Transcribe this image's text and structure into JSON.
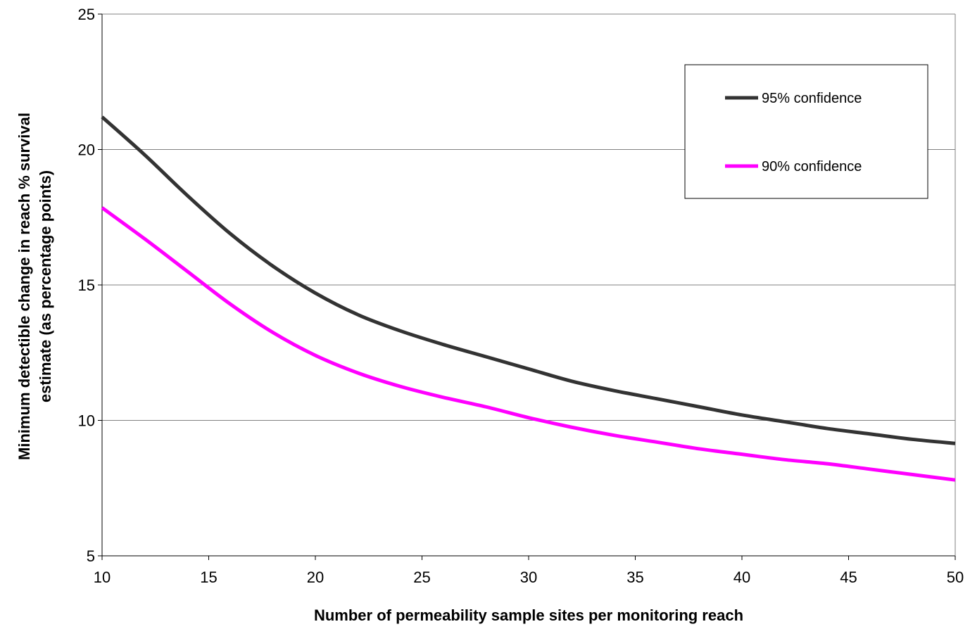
{
  "chart_data": {
    "type": "line",
    "xlabel": "Number of permeability sample sites per monitoring reach",
    "ylabel_lines": [
      "Minimum detectible change in reach % survival",
      "estimate (as percentage points)"
    ],
    "xlim": [
      10,
      50
    ],
    "ylim": [
      5,
      25
    ],
    "x_ticks": [
      10,
      15,
      20,
      25,
      30,
      35,
      40,
      45,
      50
    ],
    "y_ticks": [
      5,
      10,
      15,
      20,
      25
    ],
    "grid": "horizontal",
    "legend_position": "top-right",
    "x": [
      10,
      12,
      14,
      16,
      18,
      20,
      22,
      24,
      26,
      28,
      30,
      32,
      34,
      36,
      38,
      40,
      42,
      44,
      46,
      48,
      50
    ],
    "series": [
      {
        "name": "95% confidence",
        "color": "#333333",
        "values": [
          21.2,
          19.8,
          18.3,
          16.9,
          15.7,
          14.7,
          13.9,
          13.3,
          12.8,
          12.35,
          11.9,
          11.45,
          11.1,
          10.8,
          10.5,
          10.2,
          9.95,
          9.7,
          9.5,
          9.3,
          9.15
        ]
      },
      {
        "name": "90% confidence",
        "color": "#ff00ff",
        "values": [
          17.85,
          16.7,
          15.5,
          14.3,
          13.25,
          12.4,
          11.75,
          11.25,
          10.85,
          10.5,
          10.1,
          9.75,
          9.45,
          9.2,
          8.95,
          8.75,
          8.55,
          8.4,
          8.2,
          8.0,
          7.8
        ]
      }
    ]
  }
}
